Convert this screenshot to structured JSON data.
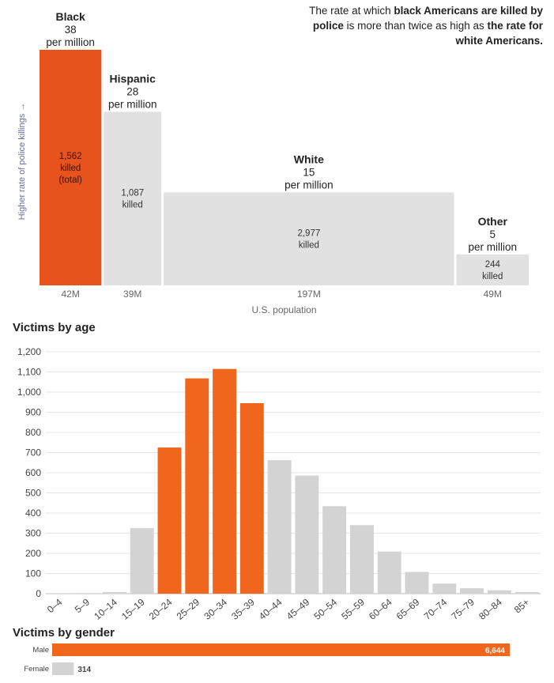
{
  "note": {
    "pre": "The rate at which ",
    "bold1": "black Americans are killed by police",
    "mid": " is more than twice as high as ",
    "bold2": "the rate for white Americans."
  },
  "chart_data": [
    {
      "type": "bar",
      "subtype": "variable-width",
      "ylabel": "Higher rate of police killings →",
      "xlabel": "U.S. population",
      "categories": [
        "Black",
        "Hispanic",
        "White",
        "Other"
      ],
      "rate_labels": [
        "38 per million",
        "28 per million",
        "15 per million",
        "5 per million"
      ],
      "rates": [
        38,
        28,
        15,
        5
      ],
      "population_millions": [
        42,
        39,
        197,
        49
      ],
      "population_labels": [
        "42M",
        "39M",
        "197M",
        "49M"
      ],
      "killed": [
        1562,
        1087,
        2977,
        244
      ],
      "killed_labels": [
        "1,562",
        "1,087",
        "2,977",
        "244"
      ],
      "killed_suffix": [
        "killed",
        "killed",
        "killed",
        "killed"
      ],
      "killed_extra": [
        "(total)",
        "",
        "",
        ""
      ],
      "colors": [
        "#e8531d",
        "#e1e1e1",
        "#e1e1e1",
        "#e1e1e1"
      ]
    },
    {
      "type": "bar",
      "title": "Victims by age",
      "categories": [
        "0–4",
        "5–9",
        "10–14",
        "15–19",
        "20–24",
        "25–29",
        "30–34",
        "35–39",
        "40–44",
        "45–49",
        "50–54",
        "55–59",
        "60–64",
        "65–69",
        "70–74",
        "75–79",
        "80–84",
        "85+"
      ],
      "values": [
        1,
        3,
        8,
        325,
        725,
        1068,
        1115,
        945,
        662,
        586,
        434,
        340,
        209,
        108,
        50,
        27,
        17,
        8
      ],
      "highlight": [
        false,
        false,
        false,
        false,
        true,
        true,
        true,
        true,
        false,
        false,
        false,
        false,
        false,
        false,
        false,
        false,
        false,
        false
      ],
      "ylim": [
        0,
        1200
      ],
      "yticks": [
        0,
        100,
        200,
        300,
        400,
        500,
        600,
        700,
        800,
        900,
        1000,
        1100,
        1200
      ],
      "ytick_labels": [
        "0",
        "100",
        "200",
        "300",
        "400",
        "500",
        "600",
        "700",
        "800",
        "900",
        "1,000",
        "1,100",
        "1,200"
      ],
      "grid": true,
      "colors": {
        "highlight": "#f0661c",
        "normal": "#d3d3d3"
      }
    },
    {
      "type": "bar",
      "orientation": "horizontal",
      "title": "Victims by gender",
      "categories": [
        "Male",
        "Female"
      ],
      "values": [
        6644,
        314
      ],
      "value_labels": [
        "6,644",
        "314"
      ],
      "colors": [
        "#f0661c",
        "#d3d3d3"
      ]
    }
  ]
}
